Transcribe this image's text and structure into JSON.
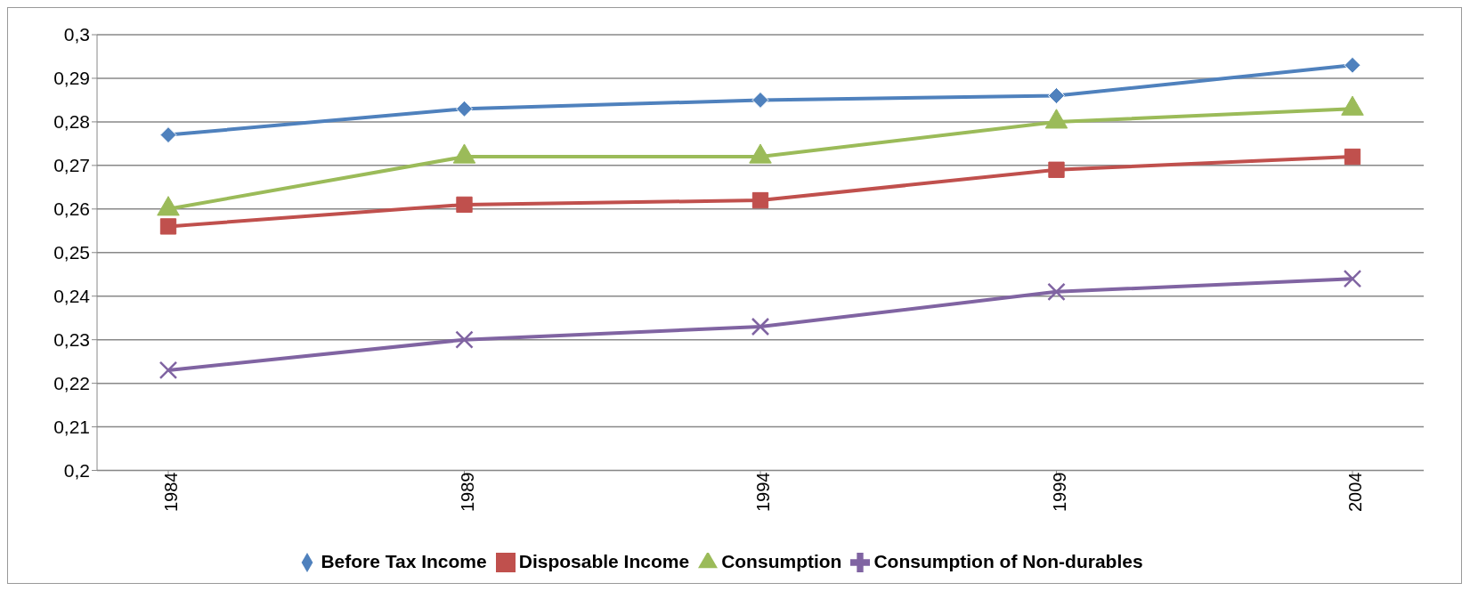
{
  "chart_data": {
    "type": "line",
    "categories": [
      "1984",
      "1989",
      "1994",
      "1999",
      "2004"
    ],
    "series": [
      {
        "name": "Before Tax Income",
        "color": "#4f81bd",
        "marker": "diamond",
        "values": [
          0.277,
          0.283,
          0.285,
          0.286,
          0.293
        ]
      },
      {
        "name": "Disposable Income",
        "color": "#c0504d",
        "marker": "square",
        "values": [
          0.256,
          0.261,
          0.262,
          0.269,
          0.272
        ]
      },
      {
        "name": "Consumption",
        "color": "#9bbb59",
        "marker": "triangle",
        "values": [
          0.26,
          0.272,
          0.272,
          0.28,
          0.283
        ]
      },
      {
        "name": "Consumption of Non-durables",
        "color": "#8064a2",
        "marker": "cross",
        "values": [
          0.223,
          0.23,
          0.233,
          0.241,
          0.244
        ]
      }
    ],
    "ylim": [
      0.2,
      0.3
    ],
    "yticks": [
      {
        "value": 0.2,
        "label": "0,2"
      },
      {
        "value": 0.21,
        "label": "0,21"
      },
      {
        "value": 0.22,
        "label": "0,22"
      },
      {
        "value": 0.23,
        "label": "0,23"
      },
      {
        "value": 0.24,
        "label": "0,24"
      },
      {
        "value": 0.25,
        "label": "0,25"
      },
      {
        "value": 0.26,
        "label": "0,26"
      },
      {
        "value": 0.27,
        "label": "0,27"
      },
      {
        "value": 0.28,
        "label": "0,28"
      },
      {
        "value": 0.29,
        "label": "0,29"
      },
      {
        "value": 0.3,
        "label": "0,3"
      }
    ],
    "grid": "y",
    "legend": "bottom",
    "line_style": "solid"
  }
}
